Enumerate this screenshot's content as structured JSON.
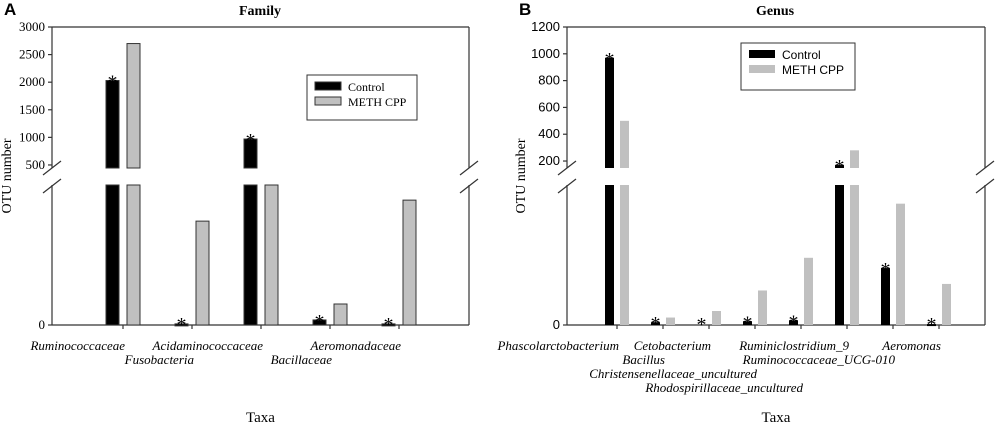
{
  "chart_data": [
    {
      "panel_label": "A",
      "type": "bar",
      "title": "Family",
      "xlabel": "Taxa",
      "ylabel": "OTU number",
      "broken_axis": true,
      "upper_ylim": [
        445,
        3000
      ],
      "upper_ticks": [
        "500",
        "1000",
        "1500",
        "2000",
        "2500",
        "3000"
      ],
      "lower_ylim": [
        0,
        500
      ],
      "lower_ticks": [
        "0"
      ],
      "categories": [
        "Ruminococcaceae",
        "Fusobacteria",
        "Acidaminococcaceae",
        "Bacillaceae",
        "Aeromonadaceae"
      ],
      "series": [
        {
          "name": "Control",
          "color": "#000000",
          "values": [
            2030,
            4,
            970,
            18,
            4
          ]
        },
        {
          "name": "METH CPP",
          "color": "#c0c0c0",
          "values": [
            2700,
            371,
            500,
            75,
            446
          ]
        }
      ],
      "significant": [
        true,
        true,
        true,
        true,
        true
      ],
      "significance_mark": "*",
      "legend": "top-right",
      "grid": false
    },
    {
      "panel_label": "B",
      "type": "bar",
      "title": "Genus",
      "xlabel": "Taxa",
      "ylabel": "OTU  number",
      "broken_axis": true,
      "upper_ylim": [
        148,
        1200
      ],
      "upper_ticks": [
        "200",
        "400",
        "600",
        "800",
        "1000",
        "1200"
      ],
      "lower_ylim": [
        0,
        150
      ],
      "lower_ticks": [
        "0"
      ],
      "categories": [
        "Phascolarctobacterium",
        "Bacillus",
        "Cetobacterium",
        "Christensenellaceae_uncultured",
        "Rhodospirillaceae_uncultured",
        "Ruminiclostridium_9",
        "Ruminococcaceae_UCG-010",
        "Aeromonas"
      ],
      "series": [
        {
          "name": "Control",
          "color": "#000000",
          "values": [
            970,
            3,
            0,
            4,
            5,
            170,
            61,
            1
          ]
        },
        {
          "name": "METH CPP",
          "color": "#c0c0c0",
          "values": [
            500,
            8,
            15,
            37,
            72,
            280,
            130,
            44
          ]
        }
      ],
      "significant": [
        true,
        true,
        true,
        true,
        true,
        true,
        true,
        true
      ],
      "significance_mark": "*",
      "legend": "top-center",
      "grid": false
    }
  ]
}
